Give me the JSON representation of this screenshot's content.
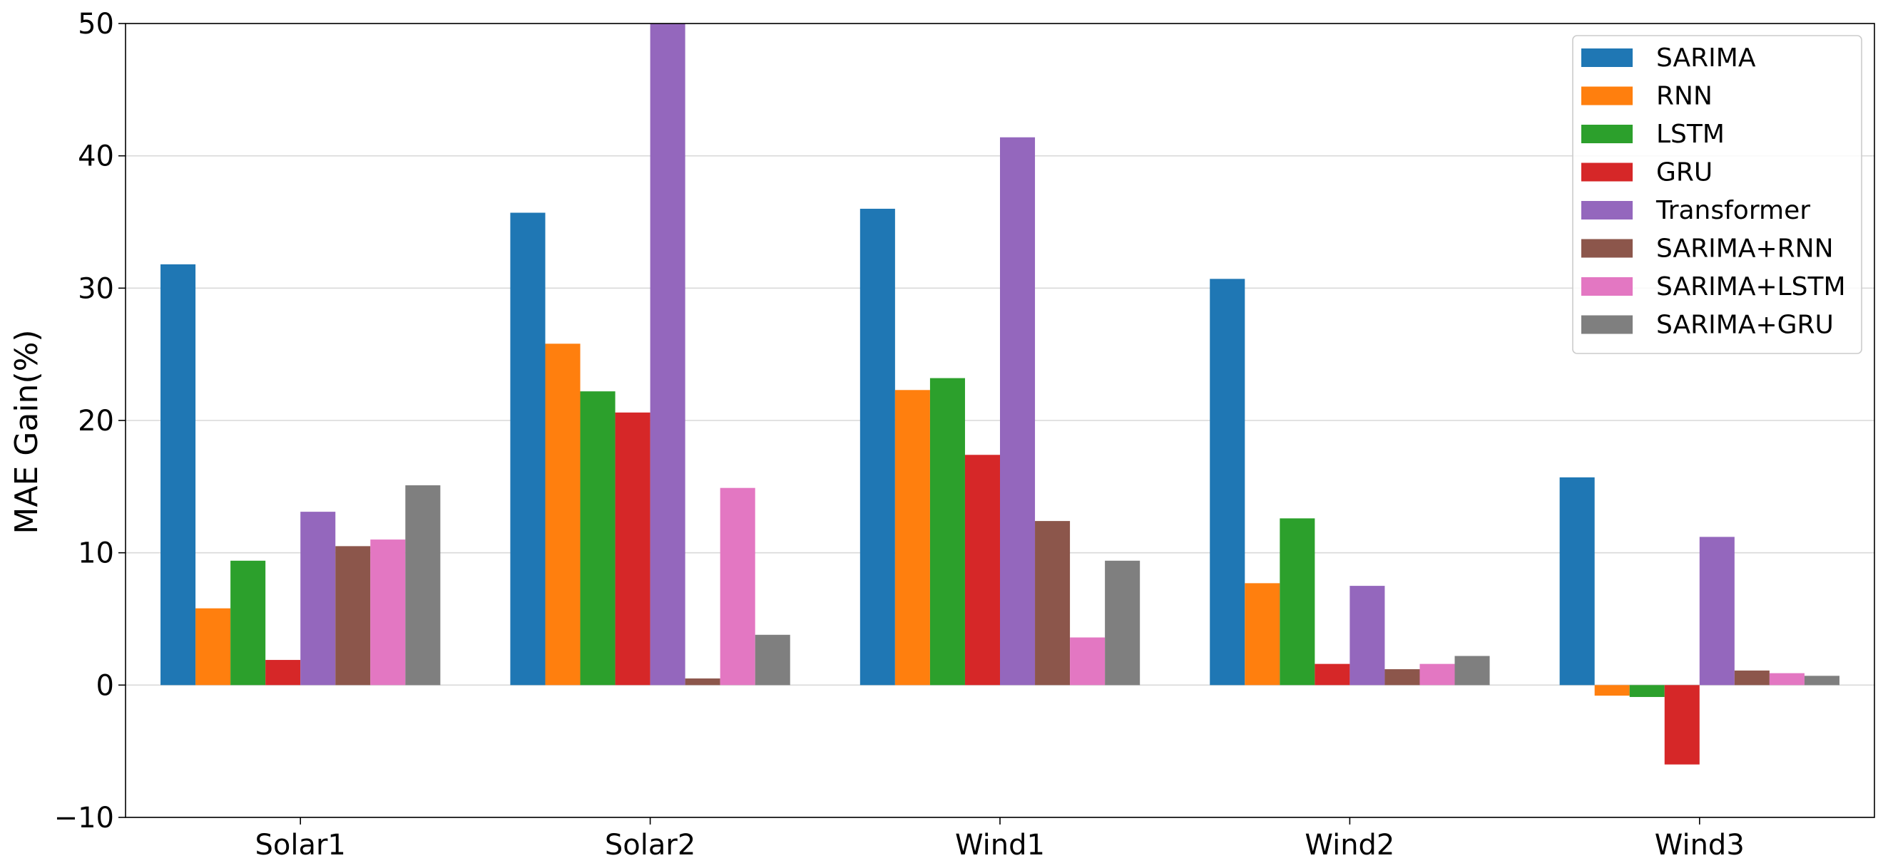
{
  "chart_data": {
    "type": "bar",
    "categories": [
      "Solar1",
      "Solar2",
      "Wind1",
      "Wind2",
      "Wind3"
    ],
    "series": [
      {
        "name": "SARIMA",
        "color": "#1f77b4",
        "values": [
          31.8,
          35.7,
          36.0,
          30.7,
          15.7
        ]
      },
      {
        "name": "RNN",
        "color": "#ff7f0e",
        "values": [
          5.8,
          25.8,
          22.3,
          7.7,
          -0.8
        ]
      },
      {
        "name": "LSTM",
        "color": "#2ca02c",
        "values": [
          9.4,
          22.2,
          23.2,
          12.6,
          -0.9
        ]
      },
      {
        "name": "GRU",
        "color": "#d62728",
        "values": [
          1.9,
          20.6,
          17.4,
          1.6,
          -6.0
        ]
      },
      {
        "name": "Transformer",
        "color": "#9467bd",
        "values": [
          13.1,
          50.0,
          41.4,
          7.5,
          11.2
        ]
      },
      {
        "name": "SARIMA+RNN",
        "color": "#8c564b",
        "values": [
          10.5,
          0.5,
          12.4,
          1.2,
          1.1
        ]
      },
      {
        "name": "SARIMA+LSTM",
        "color": "#e377c2",
        "values": [
          11.0,
          14.9,
          3.6,
          1.6,
          0.9
        ]
      },
      {
        "name": "SARIMA+GRU",
        "color": "#7f7f7f",
        "values": [
          15.1,
          3.8,
          9.4,
          2.2,
          0.7
        ]
      }
    ],
    "title": "",
    "xlabel": "",
    "ylabel": "MAE Gain(%)",
    "ylim": [
      -10,
      50
    ],
    "yticks": [
      -10,
      0,
      10,
      20,
      30,
      40,
      50
    ],
    "ytick_labels": [
      "−10",
      "0",
      "10",
      "20",
      "30",
      "40",
      "50"
    ],
    "grid": "horizontal",
    "legend_position": "top-right"
  }
}
